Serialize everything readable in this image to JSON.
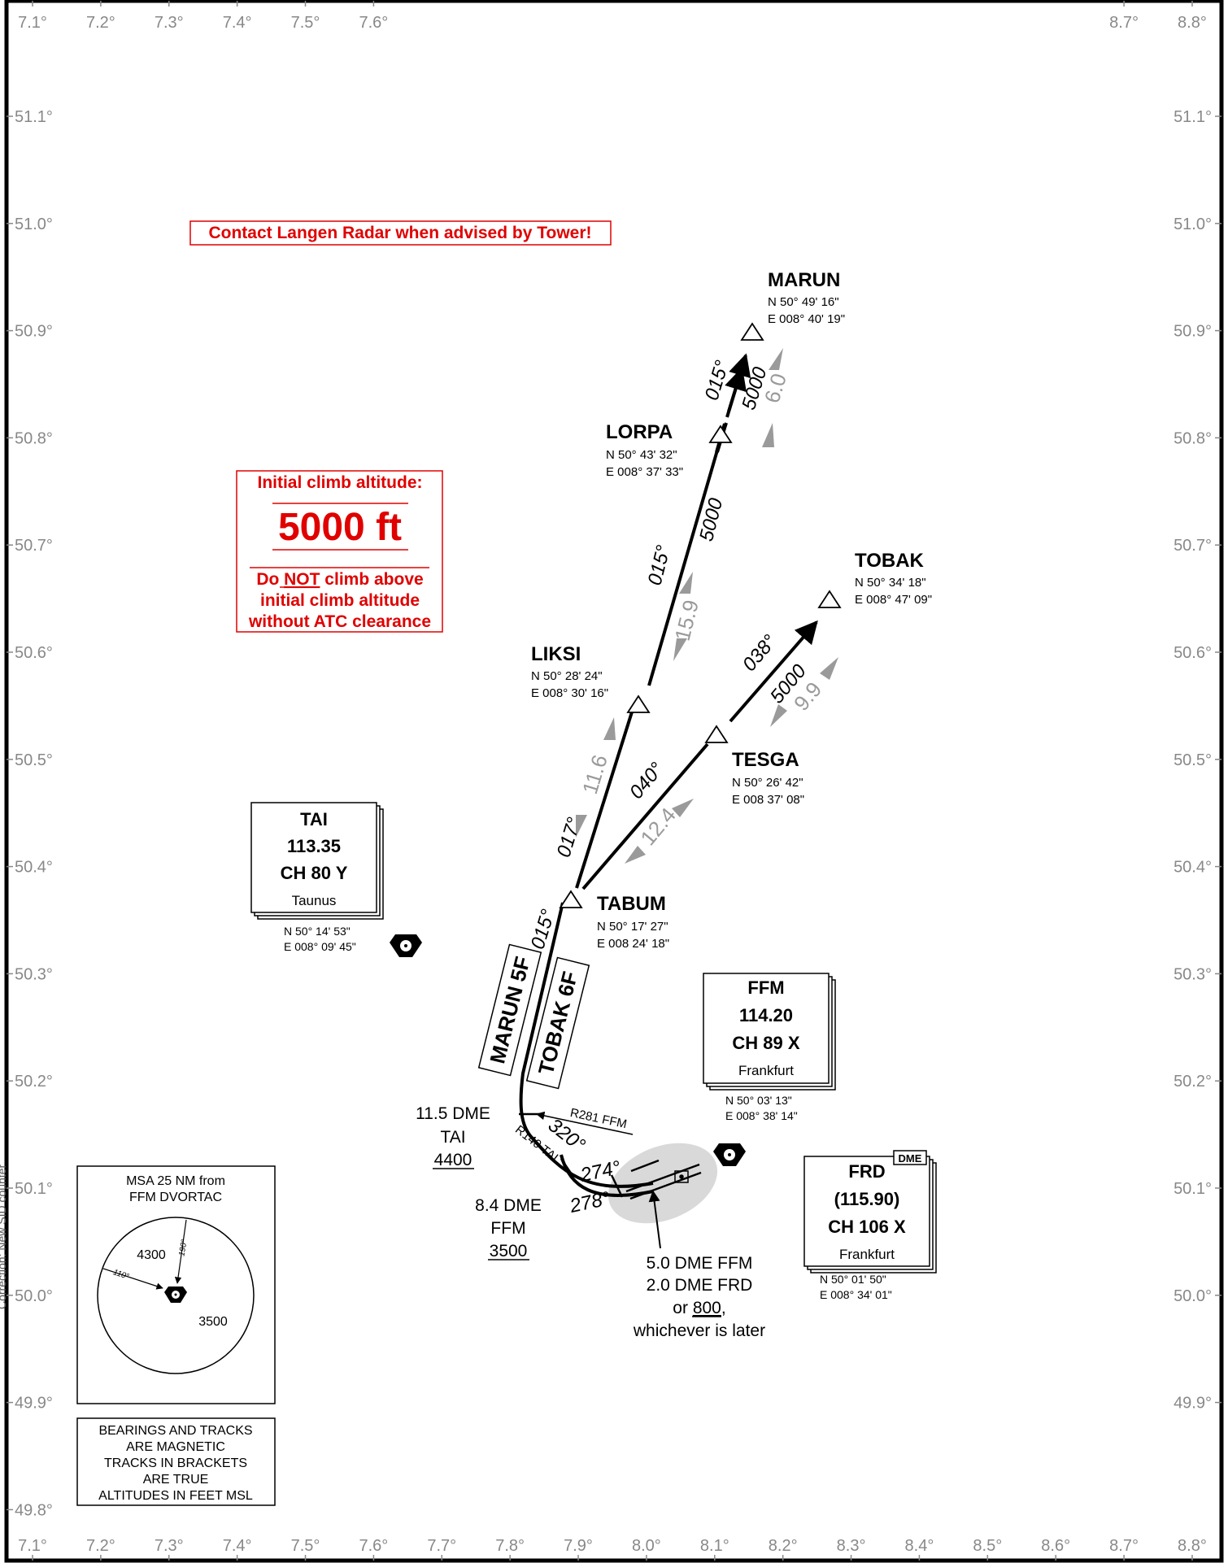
{
  "map": {
    "top_lon_labels": [
      "7.1°",
      "7.2°",
      "7.3°",
      "7.4°",
      "7.5°",
      "7.6°",
      "8.7°",
      "8.8°"
    ],
    "bottom_lon_labels": [
      "7.1°",
      "7.2°",
      "7.3°",
      "7.4°",
      "7.5°",
      "7.6°",
      "7.7°",
      "7.8°",
      "7.9°",
      "8.0°",
      "8.1°",
      "8.2°",
      "8.3°",
      "8.4°",
      "8.5°",
      "8.6°",
      "8.7°",
      "8.8°"
    ],
    "left_lat_labels": [
      "51.1°",
      "51.0°",
      "50.9°",
      "50.8°",
      "50.7°",
      "50.6°",
      "50.5°",
      "50.4°",
      "50.3°",
      "50.2°",
      "50.1°",
      "50.0°",
      "49.9°",
      "49.8°"
    ],
    "right_lat_labels": [
      "51.1°",
      "51.0°",
      "50.9°",
      "50.8°",
      "50.7°",
      "50.6°",
      "50.5°",
      "50.4°",
      "50.3°",
      "50.2°",
      "50.1°",
      "50.0°",
      "49.9°"
    ]
  },
  "side_text": "Correction: New SID counter",
  "notices": {
    "contact": "Contact Langen Radar when advised by Tower!",
    "climb_title": "Initial climb altitude:",
    "climb_alt": "5000 ft",
    "climb_line1_pre": "Do ",
    "climb_line1_not": "NOT",
    "climb_line1_post": " climb above",
    "climb_line2": "initial climb altitude",
    "climb_line3": "without ATC clearance"
  },
  "waypoints": {
    "marun": {
      "name": "MARUN",
      "lat": "N 50° 49' 16\"",
      "lon": "E 008° 40' 19\""
    },
    "lorpa": {
      "name": "LORPA",
      "lat": "N 50° 43' 32\"",
      "lon": "E 008° 37' 33\""
    },
    "tobak": {
      "name": "TOBAK",
      "lat": "N 50° 34' 18\"",
      "lon": "E 008° 47' 09\""
    },
    "liksi": {
      "name": "LIKSI",
      "lat": "N 50° 28' 24\"",
      "lon": "E 008° 30' 16\""
    },
    "tesga": {
      "name": "TESGA",
      "lat": "N 50° 26' 42\"",
      "lon": "E 008 37' 08\""
    },
    "tabum": {
      "name": "TABUM",
      "lat": "N 50° 17' 27\"",
      "lon": "E 008 24' 18\""
    }
  },
  "navaids": {
    "tai": {
      "ident": "TAI",
      "freq": "113.35",
      "channel": "CH 80 Y",
      "name": "Taunus",
      "lat": "N 50° 14' 53\"",
      "lon": "E 008° 09' 45\""
    },
    "ffm": {
      "ident": "FFM",
      "freq": "114.20",
      "channel": "CH 89 X",
      "name": "Frankfurt",
      "lat": "N 50° 03' 13\"",
      "lon": "E 008° 38' 14\""
    },
    "frd": {
      "ident": "FRD",
      "freq": "(115.90)",
      "channel": "CH 106 X",
      "name": "Frankfurt",
      "badge": "DME",
      "lat": "N 50° 01' 50\"",
      "lon": "E 008° 34' 01\""
    }
  },
  "routes": {
    "marun_name": "MARUN 5F",
    "tobak_name": "TOBAK 6F",
    "tracks": {
      "t015_low": "015°",
      "t017": "017°",
      "t015_mid": "015°",
      "t015_top": "015°",
      "t040": "040°",
      "t038": "038°",
      "t320": "320°",
      "t274": "274°",
      "t278": "278°"
    },
    "altitudes": {
      "lorpa_leg": "5000",
      "marun_leg": "5000",
      "tobak_leg": "5000"
    },
    "distances": {
      "d116": "11.6",
      "d159": "15.9",
      "d60": "6.0",
      "d124": "12.4",
      "d99": "9.9"
    },
    "radials": {
      "r281": "R281 FFM",
      "r140": "R140 TAI"
    }
  },
  "constraints": {
    "tai_dme": "11.5 DME",
    "tai_id": "TAI",
    "tai_alt": "4400",
    "ffm_dme": "8.4 DME",
    "ffm_id": "FFM",
    "ffm_alt": "3500",
    "turn_line1": "5.0 DME FFM",
    "turn_line2": "2.0 DME FRD",
    "turn_line3_pre": "or ",
    "turn_line3_alt": "800",
    "turn_line3_post": ",",
    "turn_line4": "whichever is later"
  },
  "msa": {
    "title1": "MSA 25 NM from",
    "title2": "FFM DVORTAC",
    "sector_nw": "4300",
    "sector_se": "3500",
    "brg1": "190°",
    "brg2": "110°"
  },
  "legend": {
    "line1": "BEARINGS AND TRACKS",
    "line2": "ARE MAGNETIC",
    "line3": "TRACKS IN BRACKETS",
    "line4": "ARE TRUE",
    "line5": "ALTITUDES IN FEET MSL"
  }
}
